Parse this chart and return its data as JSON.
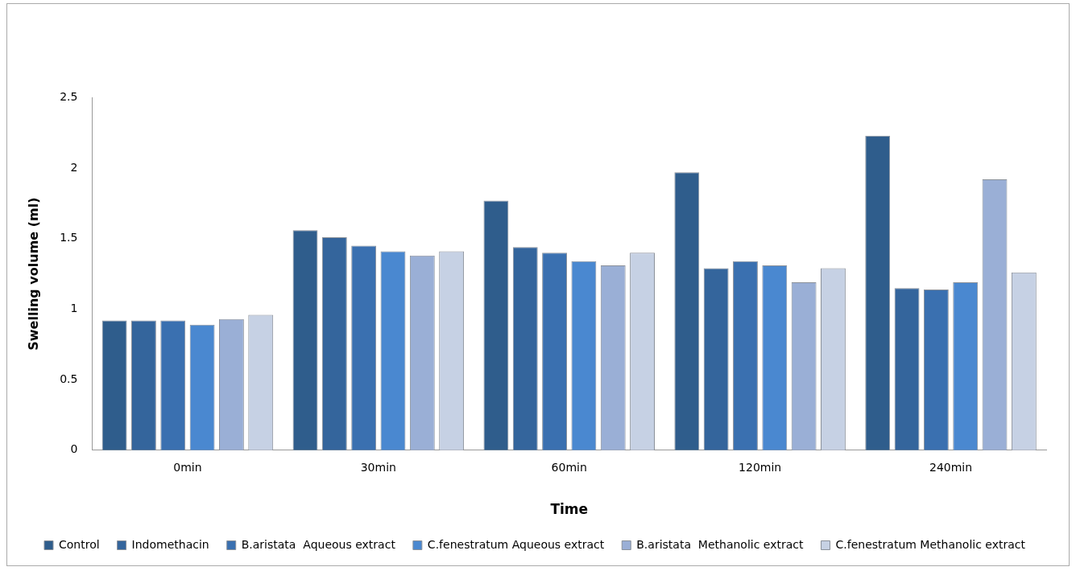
{
  "chart_data": {
    "type": "bar",
    "xlabel": "Time",
    "ylabel": "Swelling volume (ml)",
    "categories": [
      "0min",
      "30min",
      "60min",
      "120min",
      "240min"
    ],
    "series": [
      {
        "name": "Control",
        "color": "#2f5d8c",
        "values": [
          0.92,
          1.56,
          1.77,
          1.97,
          2.23
        ]
      },
      {
        "name": "Indomethacin",
        "color": "#34659c",
        "values": [
          0.92,
          1.51,
          1.44,
          1.29,
          1.15
        ]
      },
      {
        "name": "B.aristata  Aqueous extract",
        "color": "#3a70b0",
        "values": [
          0.92,
          1.45,
          1.4,
          1.34,
          1.14
        ]
      },
      {
        "name": "C.fenestratum Aqueous extract",
        "color": "#4a88d0",
        "values": [
          0.89,
          1.41,
          1.34,
          1.31,
          1.19
        ]
      },
      {
        "name": "B.aristata  Methanolic extract",
        "color": "#9aafd6",
        "values": [
          0.93,
          1.38,
          1.31,
          1.19,
          1.92
        ]
      },
      {
        "name": "C.fenestratum Methanolic extract",
        "color": "#c6d1e4",
        "values": [
          0.96,
          1.41,
          1.4,
          1.29,
          1.26
        ]
      }
    ],
    "ylim": [
      0,
      2.5
    ],
    "yticks": [
      0,
      0.5,
      1,
      1.5,
      2,
      2.5
    ],
    "grid": false,
    "legend": "bottom"
  }
}
